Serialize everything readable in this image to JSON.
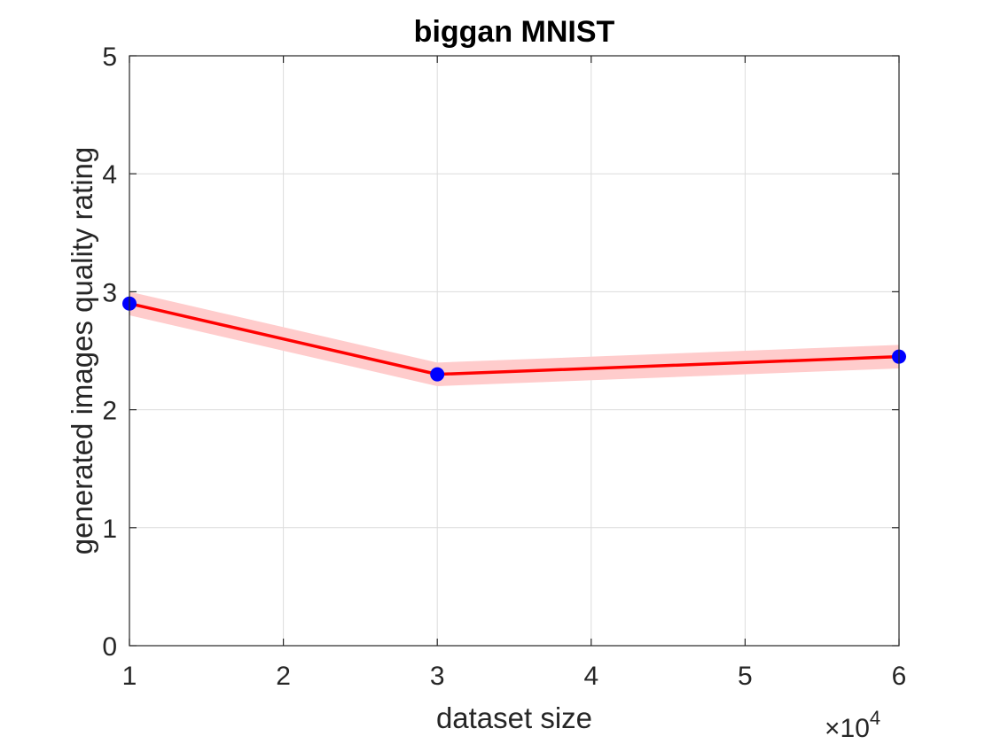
{
  "chart_data": {
    "type": "line",
    "title": "biggan MNIST",
    "xlabel": "dataset size",
    "ylabel": "generated images quality rating",
    "x_multiplier": "×10",
    "x_multiplier_exp": "4",
    "x": [
      10000,
      30000,
      60000
    ],
    "values": [
      2.9,
      2.3,
      2.45
    ],
    "band_halfwidth": 0.1,
    "xlim": [
      10000,
      60000
    ],
    "ylim": [
      0,
      5
    ],
    "xticks": [
      10000,
      20000,
      30000,
      40000,
      50000,
      60000
    ],
    "xtick_labels": [
      "1",
      "2",
      "3",
      "4",
      "5",
      "6"
    ],
    "yticks": [
      0,
      1,
      2,
      3,
      4,
      5
    ],
    "ytick_labels": [
      "0",
      "1",
      "2",
      "3",
      "4",
      "5"
    ],
    "grid": true,
    "colors": {
      "line": "#ff0000",
      "band": "#ffcccc",
      "markers": "#0000ff"
    }
  }
}
